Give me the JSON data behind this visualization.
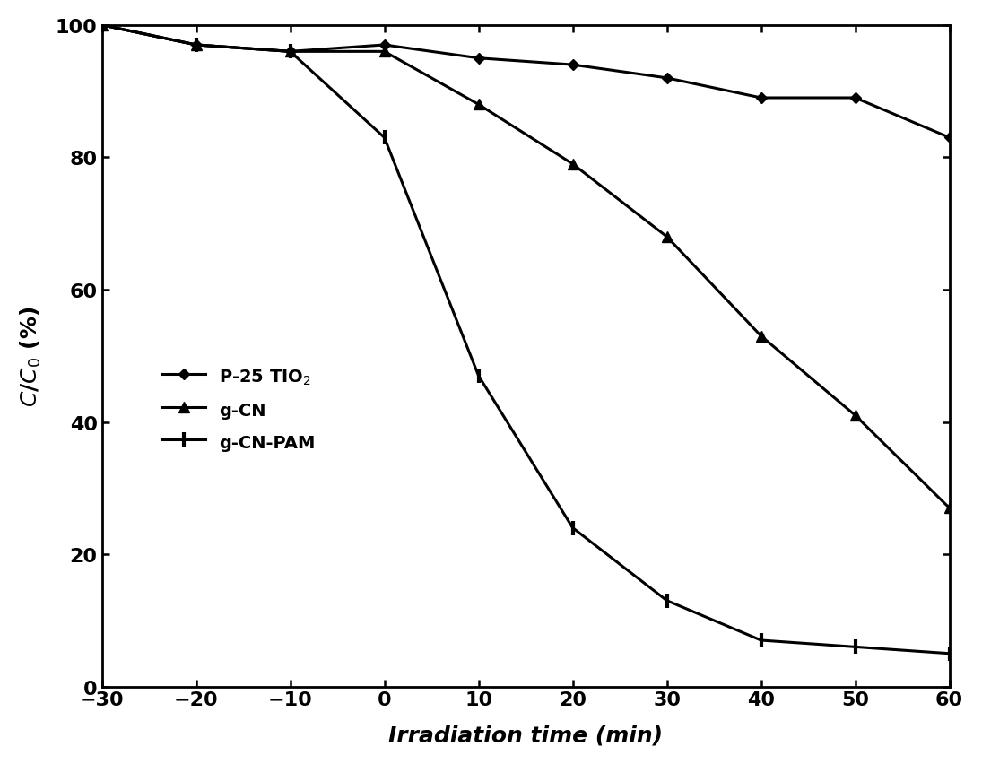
{
  "series": {
    "P25_TIO2": {
      "x": [
        -30,
        -20,
        -10,
        0,
        10,
        20,
        30,
        40,
        50,
        60
      ],
      "y": [
        100,
        97,
        96,
        97,
        95,
        94,
        92,
        89,
        89,
        83
      ],
      "label": "P-25 TIO$_2$",
      "marker": "D",
      "color": "#000000",
      "linewidth": 2.2,
      "markersize": 6
    },
    "gCN": {
      "x": [
        -30,
        -20,
        -10,
        0,
        10,
        20,
        30,
        40,
        50,
        60
      ],
      "y": [
        100,
        97,
        96,
        96,
        88,
        79,
        68,
        53,
        41,
        27
      ],
      "label": "g-CN",
      "marker": "^",
      "color": "#000000",
      "linewidth": 2.2,
      "markersize": 8
    },
    "gCN_PAM": {
      "x": [
        -30,
        -20,
        -10,
        0,
        10,
        20,
        30,
        40,
        50,
        60
      ],
      "y": [
        100,
        97,
        96,
        83,
        47,
        24,
        13,
        7,
        6,
        5
      ],
      "label": "g-CN-PAM",
      "marker": "P",
      "color": "#000000",
      "linewidth": 2.2,
      "markersize": 7
    }
  },
  "xlabel": "Irradiation time (min)",
  "ylabel": "$C$/$C_0$ (%)",
  "xlim": [
    -30,
    60
  ],
  "ylim": [
    0,
    100
  ],
  "xticks": [
    -30,
    -20,
    -10,
    0,
    10,
    20,
    30,
    40,
    50,
    60
  ],
  "yticks": [
    0,
    20,
    40,
    60,
    80,
    100
  ],
  "background_color": "#ffffff",
  "legend_loc": "center left",
  "font_color": "#000000",
  "tick_fontsize": 16,
  "label_fontsize": 18,
  "legend_fontsize": 14
}
